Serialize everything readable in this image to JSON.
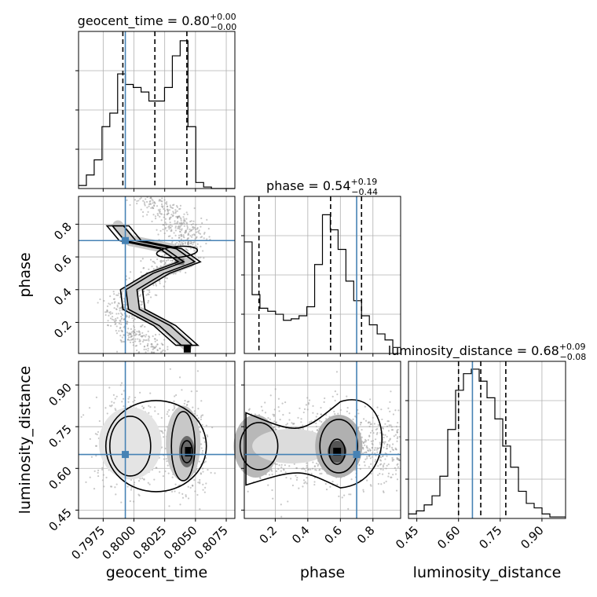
{
  "chart_data": {
    "type": "corner",
    "parameters": [
      "geocent_time",
      "phase",
      "luminosity_distance"
    ],
    "axis_labels": {
      "x": [
        "geocent_time",
        "phase",
        "luminosity_distance"
      ],
      "y": [
        "phase",
        "luminosity_distance"
      ]
    },
    "titles": [
      {
        "param": "geocent_time",
        "text": "geocent_time = 0.80",
        "plus": "+0.00",
        "minus": "−0.00"
      },
      {
        "param": "phase",
        "text": "phase = 0.54",
        "plus": "+0.19",
        "minus": "−0.44"
      },
      {
        "param": "luminosity_distance",
        "text": "luminosity_distance = 0.68",
        "plus": "+0.09",
        "minus": "−0.08"
      }
    ],
    "ranges": {
      "geocent_time": [
        0.7955,
        0.8082
      ],
      "phase": [
        0.01,
        0.97
      ],
      "luminosity_distance": [
        0.42,
        0.985
      ]
    },
    "ticks": {
      "geocent_time": {
        "values": [
          0.7975,
          0.8,
          0.8025,
          0.805,
          0.8075
        ],
        "labels": [
          "0.7975",
          "0.8000",
          "0.8025",
          "0.8050",
          "0.8075"
        ]
      },
      "phase": {
        "values": [
          0.2,
          0.4,
          0.6,
          0.8
        ],
        "labels": [
          "0.2",
          "0.4",
          "0.6",
          "0.8"
        ]
      },
      "luminosity_distance": {
        "values": [
          0.45,
          0.6,
          0.75,
          0.9
        ],
        "labels": [
          "0.45",
          "0.60",
          "0.75",
          "0.90"
        ]
      }
    },
    "truths": {
      "geocent_time": 0.7993,
      "phase": 0.7,
      "luminosity_distance": 0.65
    },
    "quantiles": {
      "geocent_time": [
        0.7991,
        0.8017,
        0.8043
      ],
      "phase": [
        0.1,
        0.54,
        0.73
      ],
      "luminosity_distance": [
        0.6,
        0.68,
        0.77
      ]
    },
    "histograms": {
      "geocent_time": [
        0.02,
        0.09,
        0.19,
        0.41,
        0.5,
        0.76,
        0.69,
        0.67,
        0.64,
        0.58,
        0.58,
        0.67,
        0.88,
        0.98,
        0.41,
        0.04,
        0.01,
        0.0,
        0.0,
        0.0
      ],
      "phase": [
        0.74,
        0.39,
        0.3,
        0.28,
        0.26,
        0.22,
        0.23,
        0.25,
        0.31,
        0.59,
        0.92,
        0.82,
        0.69,
        0.48,
        0.35,
        0.25,
        0.19,
        0.13,
        0.09,
        0.04
      ],
      "luminosity_distance": [
        0.03,
        0.05,
        0.09,
        0.15,
        0.28,
        0.59,
        0.85,
        0.96,
        0.99,
        0.91,
        0.8,
        0.66,
        0.48,
        0.34,
        0.18,
        0.1,
        0.07,
        0.03,
        0.01,
        0.01
      ]
    },
    "grid": true
  }
}
